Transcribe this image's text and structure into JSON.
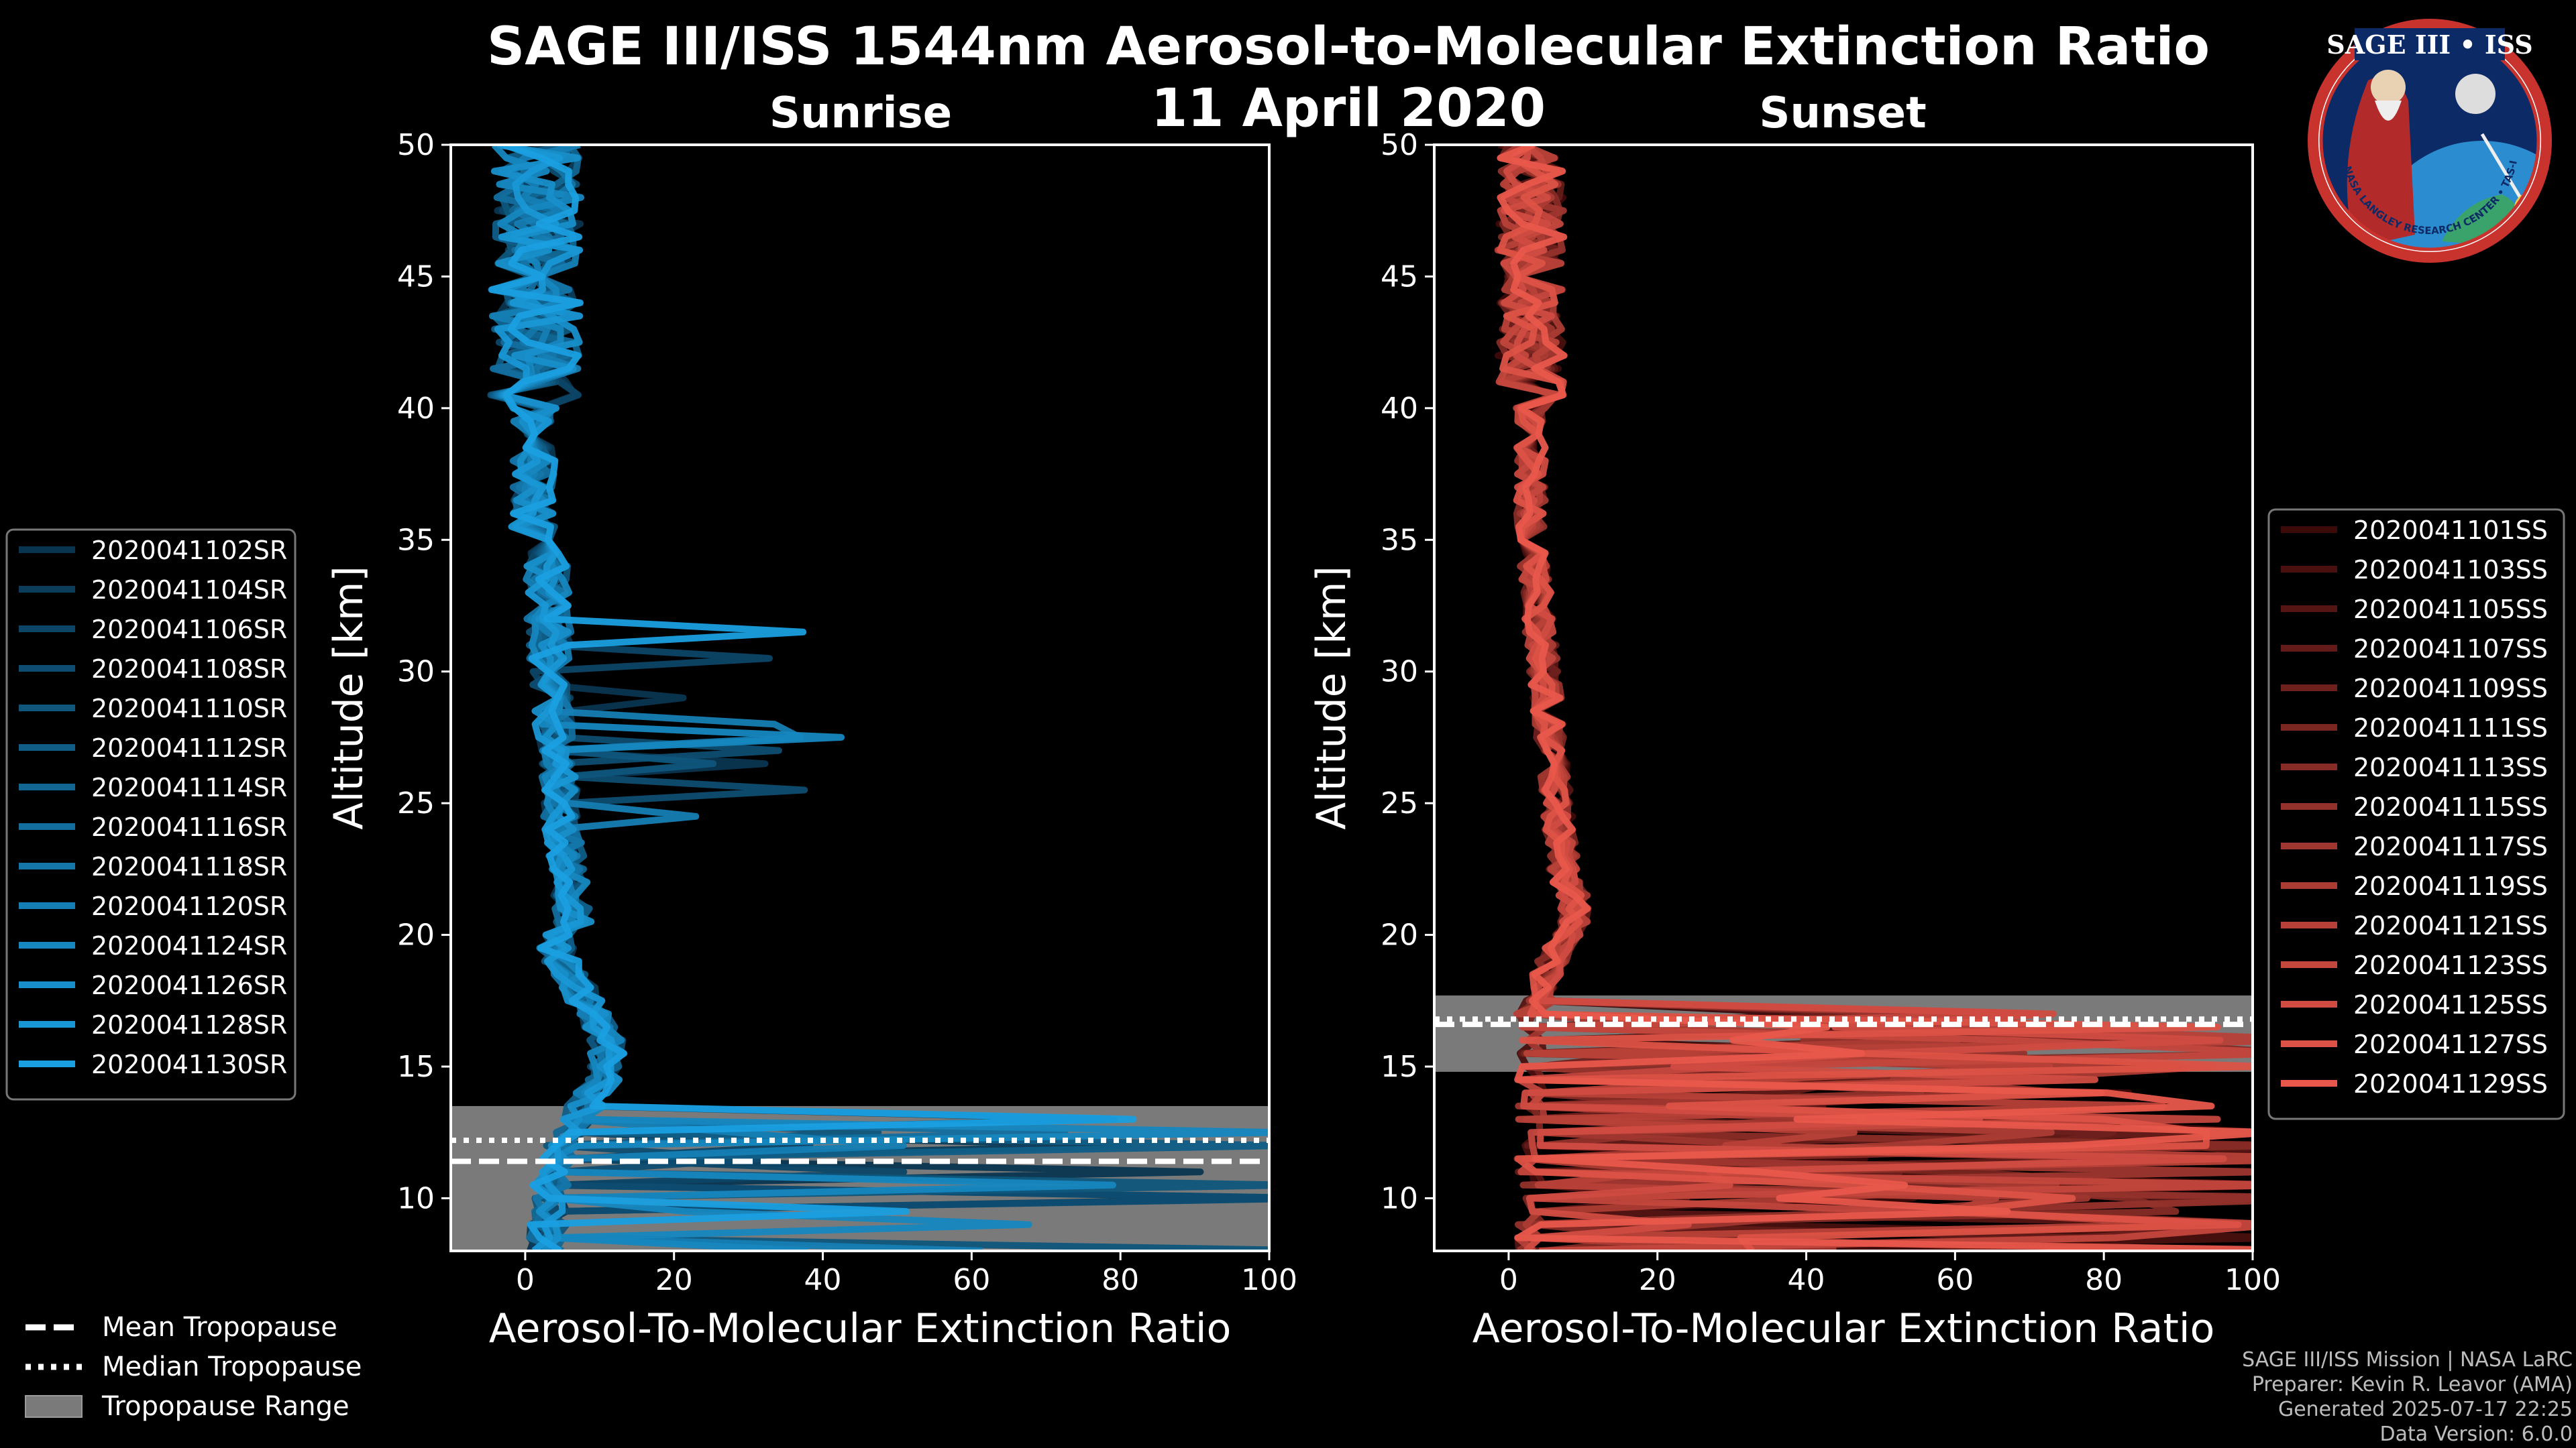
{
  "title": "SAGE III/ISS 1544nm Aerosol-to-Molecular Extinction Ratio",
  "date": "11 April 2020",
  "logo": {
    "name": "SAGE III • ISS",
    "ring_text": "BALL • NASA LANGLEY RESEARCH CENTER • TAS-I • ESA"
  },
  "footer": {
    "line1": "SAGE III/ISS Mission | NASA LaRC",
    "line2": "Preparer: Kevin R. Leavor (AMA)",
    "line3": "Generated 2025-07-17 22:25",
    "line4": "Data Version: 6.0.0"
  },
  "bottom_legend": [
    {
      "label": "Mean Tropopause",
      "style": "dashed"
    },
    {
      "label": "Median Tropopause",
      "style": "dotted"
    },
    {
      "label": "Tropopause Range",
      "style": "patch"
    }
  ],
  "chart_data": [
    {
      "type": "line",
      "panel": "sunrise",
      "title": "Sunrise",
      "xlabel": "Aerosol-To-Molecular Extinction Ratio",
      "ylabel": "Altitude [km]",
      "xlim": [
        -10,
        100
      ],
      "ylim": [
        8,
        50
      ],
      "xticks": [
        0,
        20,
        40,
        60,
        80,
        100
      ],
      "yticks": [
        10,
        15,
        20,
        25,
        30,
        35,
        40,
        45,
        50
      ],
      "mean_tropopause": 11.4,
      "median_tropopause": 12.2,
      "tropopause_range": [
        8,
        13.5
      ],
      "color_light": "#1a9fe0",
      "color_dark": "#0a3550",
      "legend_position": "left",
      "series": [
        {
          "name": "2020041102SR"
        },
        {
          "name": "2020041104SR"
        },
        {
          "name": "2020041106SR"
        },
        {
          "name": "2020041108SR"
        },
        {
          "name": "2020041110SR"
        },
        {
          "name": "2020041112SR"
        },
        {
          "name": "2020041114SR"
        },
        {
          "name": "2020041116SR"
        },
        {
          "name": "2020041118SR"
        },
        {
          "name": "2020041120SR"
        },
        {
          "name": "2020041124SR"
        },
        {
          "name": "2020041126SR"
        },
        {
          "name": "2020041128SR"
        },
        {
          "name": "2020041130SR"
        }
      ]
    },
    {
      "type": "line",
      "panel": "sunset",
      "title": "Sunset",
      "xlabel": "Aerosol-To-Molecular Extinction Ratio",
      "ylabel": "Altitude [km]",
      "xlim": [
        -10,
        100
      ],
      "ylim": [
        8,
        50
      ],
      "xticks": [
        0,
        20,
        40,
        60,
        80,
        100
      ],
      "yticks": [
        10,
        15,
        20,
        25,
        30,
        35,
        40,
        45,
        50
      ],
      "mean_tropopause": 16.6,
      "median_tropopause": 16.8,
      "tropopause_range": [
        14.8,
        17.7
      ],
      "color_light": "#e8574b",
      "color_dark": "#3d0a0a",
      "legend_position": "right",
      "series": [
        {
          "name": "2020041101SS"
        },
        {
          "name": "2020041103SS"
        },
        {
          "name": "2020041105SS"
        },
        {
          "name": "2020041107SS"
        },
        {
          "name": "2020041109SS"
        },
        {
          "name": "2020041111SS"
        },
        {
          "name": "2020041113SS"
        },
        {
          "name": "2020041115SS"
        },
        {
          "name": "2020041117SS"
        },
        {
          "name": "2020041119SS"
        },
        {
          "name": "2020041121SS"
        },
        {
          "name": "2020041123SS"
        },
        {
          "name": "2020041125SS"
        },
        {
          "name": "2020041127SS"
        },
        {
          "name": "2020041129SS"
        }
      ]
    }
  ]
}
